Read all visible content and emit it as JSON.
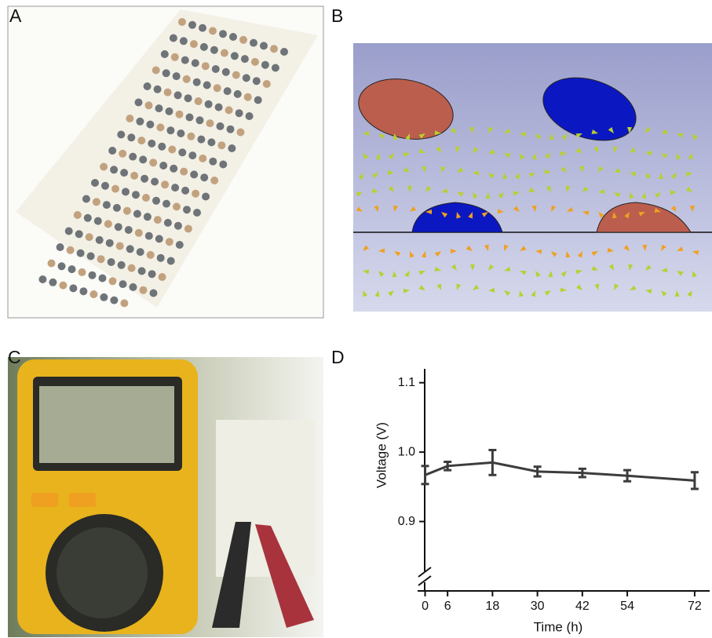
{
  "panels": [
    "A",
    "B",
    "C",
    "D"
  ],
  "chart_data": {
    "type": "line",
    "x_label": "Time (h)",
    "y_label": "Voltage (V)",
    "x": [
      0,
      6,
      18,
      30,
      42,
      54,
      72
    ],
    "values": [
      0.967,
      0.98,
      0.985,
      0.972,
      0.97,
      0.966,
      0.959
    ],
    "errors": [
      0.013,
      0.006,
      0.018,
      0.007,
      0.006,
      0.008,
      0.012
    ],
    "color": "#3c3c3c",
    "xlim": [
      -2,
      76
    ],
    "xticks": [
      0,
      6,
      18,
      30,
      42,
      54,
      72
    ],
    "ylim": [
      0.8,
      1.12
    ],
    "yticks": [
      {
        "value": 0.9,
        "label": "0.9"
      },
      {
        "value": 1,
        "label": "1.0"
      },
      {
        "value": 1.1,
        "label": "1.1"
      }
    ],
    "grid": false
  }
}
